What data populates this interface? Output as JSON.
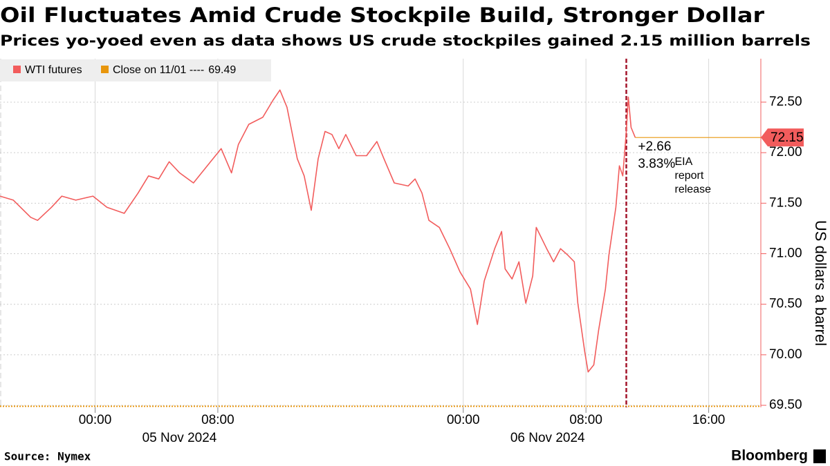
{
  "chart_data": {
    "type": "line",
    "title": "Oil Fluctuates Amid Crude Stockpile Build, Stronger Dollar",
    "subtitle": "Prices yo-yoed even as data shows US crude stockpiles gained 2.15 million barrels",
    "y_label": "US dollars a barrel",
    "source": "Source: Nymex",
    "brand": "Bloomberg",
    "x": [
      -6.2,
      -5.33,
      -4.2,
      -3.75,
      -2.84,
      -2.17,
      -1.26,
      -0.14,
      0.77,
      1.9,
      2.8,
      3.48,
      4.15,
      4.83,
      5.51,
      6.41,
      7.31,
      8.22,
      8.89,
      9.34,
      10.02,
      10.93,
      11.6,
      12.05,
      12.51,
      13.18,
      13.63,
      14.09,
      14.54,
      14.99,
      15.44,
      15.89,
      16.34,
      17.02,
      17.7,
      18.37,
      18.83,
      19.5,
      20.41,
      20.86,
      21.31,
      21.76,
      22.44,
      23.12,
      23.79,
      24.47,
      24.92,
      25.37,
      26.05,
      26.5,
      26.73,
      27.18,
      27.63,
      28.08,
      28.53,
      28.76,
      29.44,
      29.89,
      30.34,
      30.79,
      31.24,
      31.47,
      31.92,
      32.14,
      32.51,
      32.82,
      33.27,
      33.5,
      33.95,
      34.18,
      34.4,
      34.63,
      34.76,
      34.94,
      35.21
    ],
    "series": [
      {
        "name": "WTI futures",
        "color": "#f25c5c",
        "values": [
          71.57,
          71.53,
          71.36,
          71.33,
          71.46,
          71.57,
          71.53,
          71.57,
          71.46,
          71.4,
          71.6,
          71.77,
          71.74,
          71.91,
          71.8,
          71.7,
          71.87,
          72.04,
          71.8,
          72.08,
          72.28,
          72.35,
          72.52,
          72.62,
          72.45,
          71.94,
          71.77,
          71.43,
          71.94,
          72.21,
          72.18,
          72.04,
          72.18,
          71.97,
          71.97,
          72.11,
          71.94,
          71.7,
          71.67,
          71.74,
          71.6,
          71.33,
          71.26,
          71.05,
          70.82,
          70.65,
          70.3,
          70.73,
          71.05,
          71.22,
          70.85,
          70.75,
          70.92,
          70.51,
          70.78,
          71.26,
          71.05,
          70.92,
          71.05,
          70.99,
          70.92,
          70.51,
          70.03,
          69.83,
          69.9,
          70.24,
          70.65,
          70.99,
          71.46,
          71.87,
          71.77,
          72.21,
          72.55,
          72.25,
          72.15
        ]
      }
    ],
    "reference_line": {
      "name": "Close on 11/01 ----",
      "value": 69.49,
      "color": "#e8960c"
    },
    "change_labels": [
      "+2.66",
      "3.83%"
    ],
    "event": {
      "x": 34.63,
      "label": "EIA report release",
      "color": "#a3152b"
    },
    "xlim": [
      -6.2,
      43.4
    ],
    "xticks": [
      {
        "value": 0,
        "label": "00:00"
      },
      {
        "value": 8,
        "label": "08:00"
      },
      {
        "value": 24,
        "label": "00:00"
      },
      {
        "value": 32,
        "label": "08:00"
      },
      {
        "value": 40,
        "label": "16:00"
      }
    ],
    "xdates": [
      {
        "value": 5.5,
        "label": "05 Nov 2024"
      },
      {
        "value": 29.5,
        "label": "06 Nov 2024"
      }
    ],
    "ylim": [
      69.48,
      72.93
    ],
    "yticks": [
      {
        "value": 69.5,
        "label": "69.50"
      },
      {
        "value": 70,
        "label": "70.00"
      },
      {
        "value": 70.5,
        "label": "70.50"
      },
      {
        "value": 71,
        "label": "71.00"
      },
      {
        "value": 71.5,
        "label": "71.50"
      },
      {
        "value": 72,
        "label": "72.00"
      },
      {
        "value": 72.5,
        "label": "72.50"
      }
    ],
    "grid": true
  }
}
